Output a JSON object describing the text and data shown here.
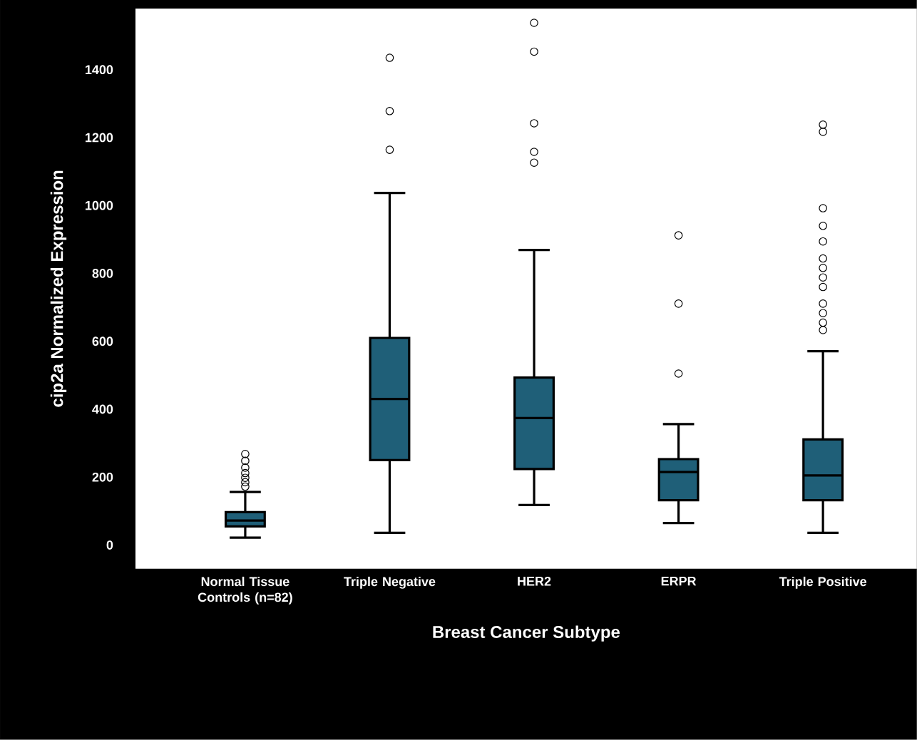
{
  "chart_data": {
    "type": "box",
    "xlabel": "Breast Cancer Subtype",
    "ylabel": "cip2a Normalized Expression",
    "categories": [
      "Normal Tissue Controls (n=82)",
      "Triple Negative",
      "HER2",
      "ERPR",
      "Triple Positive"
    ],
    "color": "#1f5f78",
    "ylim": [
      -70,
      1580
    ],
    "yticks": [
      0,
      200,
      400,
      600,
      800,
      1000,
      1200,
      1400
    ],
    "boxes": [
      {
        "low": 22,
        "q1": 55,
        "median": 72,
        "q3": 97,
        "high": 156,
        "outliers": [
          172,
          185,
          198,
          212,
          228,
          248,
          268
        ]
      },
      {
        "low": 36,
        "q1": 250,
        "median": 430,
        "q3": 610,
        "high": 1037,
        "outliers": [
          1164,
          1278,
          1435
        ]
      },
      {
        "low": 118,
        "q1": 224,
        "median": 374,
        "q3": 493,
        "high": 869,
        "outliers": [
          1126,
          1158,
          1242,
          1453,
          1538
        ]
      },
      {
        "low": 65,
        "q1": 132,
        "median": 215,
        "q3": 253,
        "high": 356,
        "outliers": [
          505,
          711,
          912
        ]
      },
      {
        "low": 36,
        "q1": 132,
        "median": 205,
        "q3": 311,
        "high": 571,
        "outliers": [
          633,
          655,
          683,
          711,
          760,
          788,
          816,
          844,
          894,
          940,
          992,
          1217,
          1238
        ]
      }
    ]
  }
}
